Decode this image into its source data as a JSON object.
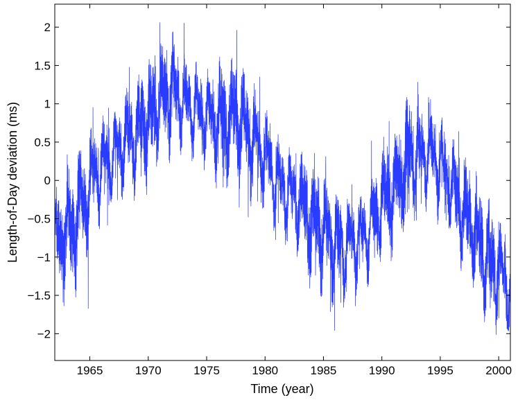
{
  "chart_data": {
    "type": "line",
    "title": "",
    "xlabel": "Time (year)",
    "ylabel": "Length-of-Day deviation (ms)",
    "xlim": [
      1962.0,
      2001.0
    ],
    "ylim": [
      -2.35,
      2.3
    ],
    "xticks": [
      1965,
      1970,
      1975,
      1980,
      1985,
      1990,
      1995,
      2000
    ],
    "xtick_labels": [
      "1965",
      "1970",
      "1975",
      "1980",
      "1985",
      "1990",
      "1995",
      "2000"
    ],
    "yticks": [
      -2,
      -1.5,
      -1,
      -0.5,
      0,
      0.5,
      1,
      1.5,
      2
    ],
    "ytick_labels": [
      "−2",
      "−1.5",
      "−1",
      "−0.5",
      "0",
      "0.5",
      "1",
      "1.5",
      "2"
    ],
    "grid": false,
    "legend": "none",
    "series": [
      {
        "color": "#2a3cff",
        "x": [
          1962.0,
          1962.5,
          1963.0,
          1963.5,
          1964.0,
          1964.5,
          1965.0,
          1965.5,
          1966.0,
          1966.5,
          1967.0,
          1967.5,
          1968.0,
          1968.5,
          1969.0,
          1969.5,
          1970.0,
          1970.5,
          1971.0,
          1971.5,
          1972.0,
          1972.5,
          1973.0,
          1973.5,
          1974.0,
          1974.5,
          1975.0,
          1975.5,
          1976.0,
          1976.5,
          1977.0,
          1977.5,
          1978.0,
          1978.5,
          1979.0,
          1979.5,
          1980.0,
          1980.5,
          1981.0,
          1981.5,
          1982.0,
          1982.5,
          1983.0,
          1983.5,
          1984.0,
          1984.5,
          1985.0,
          1985.5,
          1986.0,
          1986.5,
          1987.0,
          1987.5,
          1988.0,
          1988.5,
          1989.0,
          1989.5,
          1990.0,
          1990.5,
          1991.0,
          1991.5,
          1992.0,
          1992.5,
          1993.0,
          1993.5,
          1994.0,
          1994.5,
          1995.0,
          1995.5,
          1996.0,
          1996.5,
          1997.0,
          1997.5,
          1998.0,
          1998.5,
          1999.0,
          1999.5,
          2000.0,
          2000.5,
          2001.0
        ],
        "y": [
          -0.7,
          -0.9,
          -0.5,
          -0.75,
          -0.3,
          -0.35,
          0.0,
          0.1,
          0.2,
          0.3,
          0.3,
          0.45,
          0.5,
          0.55,
          0.6,
          0.75,
          0.8,
          0.95,
          1.0,
          1.05,
          1.15,
          1.1,
          1.05,
          0.95,
          0.9,
          0.85,
          0.85,
          0.8,
          0.8,
          0.75,
          0.8,
          0.85,
          0.8,
          0.6,
          0.5,
          0.45,
          0.3,
          0.15,
          0.0,
          -0.1,
          -0.15,
          -0.2,
          -0.3,
          -0.4,
          -0.5,
          -0.6,
          -0.65,
          -0.75,
          -0.8,
          -0.85,
          -0.85,
          -0.8,
          -0.75,
          -0.7,
          -0.6,
          -0.5,
          -0.3,
          -0.2,
          -0.1,
          0.0,
          0.2,
          0.3,
          0.3,
          0.35,
          0.4,
          0.3,
          0.2,
          0.1,
          -0.1,
          -0.3,
          -0.4,
          -0.5,
          -0.7,
          -0.85,
          -1.0,
          -1.1,
          -1.2,
          -1.3,
          -1.35
        ],
        "seasonal_amplitude_ms": 0.5
      }
    ]
  }
}
